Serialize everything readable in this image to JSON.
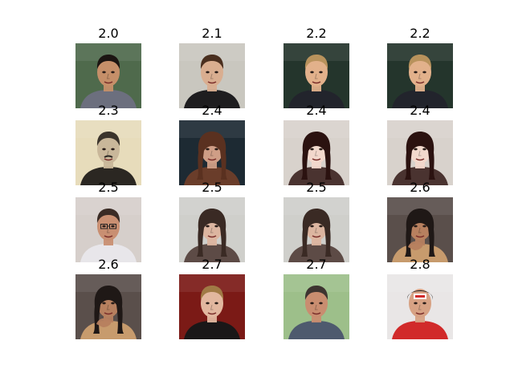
{
  "figure": {
    "panels": [
      {
        "label": "2.0",
        "image": "portrait-man-smiling-dark-hair",
        "colors": {
          "bg": "#4f6a4c",
          "skin": "#c58f69",
          "hair": "#1c1512",
          "cloth": "#6c6f7e"
        }
      },
      {
        "label": "2.1",
        "image": "portrait-young-man-shaggy-hair",
        "colors": {
          "bg": "#c9c7bf",
          "skin": "#d9ae90",
          "hair": "#4a2f1f",
          "cloth": "#1e1d1f"
        }
      },
      {
        "label": "2.2",
        "image": "portrait-blond-man-event-backdrop",
        "colors": {
          "bg": "#24352c",
          "skin": "#e2b18b",
          "hair": "#b8925c",
          "cloth": "#22242c"
        }
      },
      {
        "label": "2.2",
        "image": "portrait-blond-man-event-backdrop",
        "colors": {
          "bg": "#24352c",
          "skin": "#e2b18b",
          "hair": "#b8925c",
          "cloth": "#22242c"
        }
      },
      {
        "label": "2.3",
        "image": "portrait-vintage-man-mustache",
        "colors": {
          "bg": "#e7dcbb",
          "skin": "#c9b79a",
          "hair": "#3b342c",
          "cloth": "#2b2722"
        }
      },
      {
        "label": "2.4",
        "image": "portrait-woman-long-brown-hair",
        "colors": {
          "bg": "#1d2a33",
          "skin": "#cf9e86",
          "hair": "#5a3120",
          "cloth": "#6a3d2a"
        }
      },
      {
        "label": "2.4",
        "image": "portrait-woman-dark-hair-tattoos",
        "colors": {
          "bg": "#d8d2cc",
          "skin": "#f2d8cc",
          "hair": "#2b1210",
          "cloth": "#4a3330"
        }
      },
      {
        "label": "2.4",
        "image": "portrait-woman-dark-hair-tattoos",
        "colors": {
          "bg": "#d8d2cc",
          "skin": "#f2d8cc",
          "hair": "#2b1210",
          "cloth": "#4a3330"
        }
      },
      {
        "label": "2.5",
        "image": "portrait-man-glasses-speaking",
        "colors": {
          "bg": "#d6cfcb",
          "skin": "#c98f72",
          "hair": "#3a2b25",
          "cloth": "#e8e6ea"
        }
      },
      {
        "label": "2.5",
        "image": "portrait-woman-long-dark-hair",
        "colors": {
          "bg": "#cfcfcb",
          "skin": "#dcb5a0",
          "hair": "#3a2a24",
          "cloth": "#5d4b46"
        }
      },
      {
        "label": "2.5",
        "image": "portrait-woman-long-dark-hair",
        "colors": {
          "bg": "#cfcfcb",
          "skin": "#dcb5a0",
          "hair": "#3a2a24",
          "cloth": "#5d4b46"
        }
      },
      {
        "label": "2.6",
        "image": "portrait-woman-hand-on-chin",
        "colors": {
          "bg": "#5a4f4b",
          "skin": "#b7805f",
          "hair": "#1f1816",
          "cloth": "#c79b6d"
        }
      },
      {
        "label": "2.6",
        "image": "portrait-woman-hand-on-chin",
        "colors": {
          "bg": "#5a4f4b",
          "skin": "#b7805f",
          "hair": "#1f1816",
          "cloth": "#c79b6d"
        }
      },
      {
        "label": "2.7",
        "image": "portrait-young-man-red-background",
        "colors": {
          "bg": "#7b1a16",
          "skin": "#e2b79f",
          "hair": "#a07a45",
          "cloth": "#1a1718"
        }
      },
      {
        "label": "2.7",
        "image": "portrait-man-suit-green-background",
        "colors": {
          "bg": "#9dbf8a",
          "skin": "#c98d70",
          "hair": "#3d3430",
          "cloth": "#4e5a6e"
        }
      },
      {
        "label": "2.8",
        "image": "portrait-athlete-helmet",
        "colors": {
          "bg": "#e9e6e6",
          "skin": "#d7a284",
          "hair": "#222222",
          "cloth": "#d12a2a"
        }
      }
    ]
  }
}
